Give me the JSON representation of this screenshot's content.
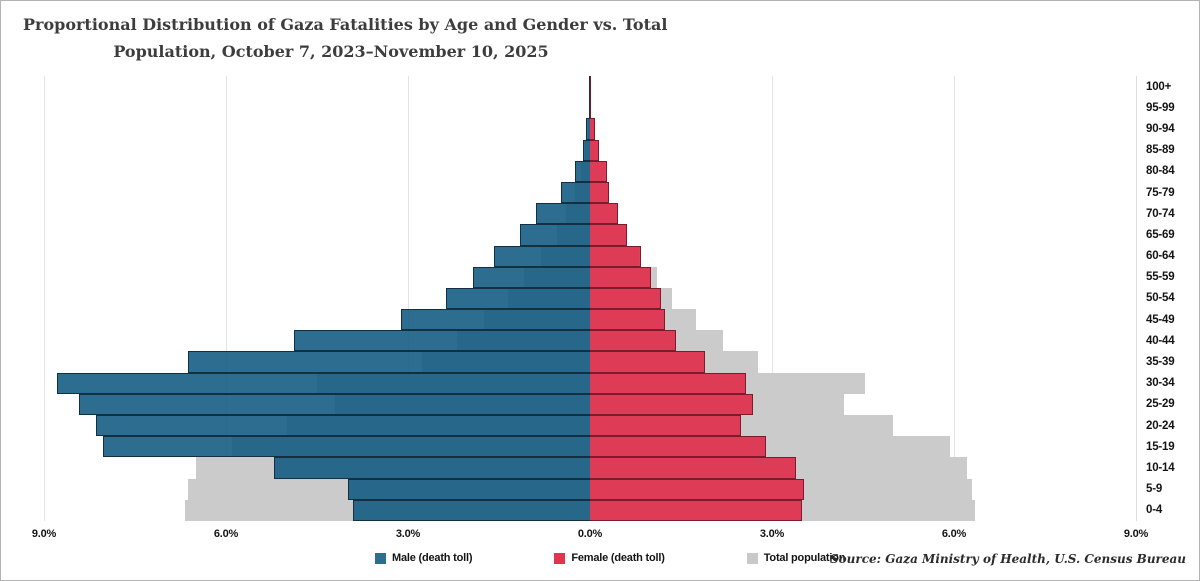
{
  "title": {
    "line1": "Proportional Distribution of Gaza Fatalities by Age and Gender vs. Total",
    "line2": "Population, October 7, 2023–November 10, 2025"
  },
  "source": "Source: Gaza Ministry of Health, U.S. Census Bureau",
  "colors": {
    "male": "#2d6d8e",
    "female": "#e02846",
    "population": "#cbcbcb",
    "male_border": "#123042",
    "female_border": "#7c1b2d",
    "gridline": "#e4e4e4",
    "center_line": "#909090"
  },
  "legend": {
    "items": [
      {
        "label": "Male (death toll)",
        "color": "#2d6d8e"
      },
      {
        "label": "Female (death toll)",
        "color": "#e0344f"
      },
      {
        "label": "Total population",
        "color": "#c9c9c9"
      }
    ]
  },
  "chart_data": {
    "type": "bar",
    "subtype": "population-pyramid",
    "title": "Proportional Distribution of Gaza Fatalities by Age and Gender vs. Total Population, October 7, 2023–November 10, 2025",
    "categories": [
      "100+",
      "95-99",
      "90-94",
      "85-89",
      "80-84",
      "75-79",
      "70-74",
      "65-69",
      "60-64",
      "55-59",
      "50-54",
      "45-49",
      "40-44",
      "35-39",
      "30-34",
      "25-29",
      "20-24",
      "15-19",
      "10-14",
      "5-9",
      "0-4"
    ],
    "units": "percent of group total, per side",
    "series": [
      {
        "name": "Male (death toll)",
        "side": "left",
        "color": "#2d6d8e",
        "values": [
          0.01,
          0.02,
          0.06,
          0.12,
          0.24,
          0.48,
          0.89,
          1.15,
          1.58,
          1.93,
          2.38,
          3.12,
          4.88,
          6.63,
          8.79,
          8.42,
          8.14,
          8.03,
          5.21,
          3.99,
          3.91
        ]
      },
      {
        "name": "Female (death toll)",
        "side": "right",
        "color": "#e02846",
        "values": [
          0.01,
          0.02,
          0.08,
          0.15,
          0.28,
          0.32,
          0.46,
          0.61,
          0.84,
          1.0,
          1.17,
          1.23,
          1.41,
          1.89,
          2.57,
          2.68,
          2.49,
          2.9,
          3.4,
          3.53,
          3.5
        ]
      },
      {
        "name": "Total population (male)",
        "side": "left",
        "color": "#cbcbcb",
        "values": [
          0.005,
          0.01,
          0.04,
          0.08,
          0.15,
          0.25,
          0.4,
          0.55,
          0.8,
          1.09,
          1.36,
          1.75,
          2.19,
          2.77,
          4.5,
          4.2,
          5.0,
          5.9,
          6.5,
          6.63,
          6.67
        ]
      },
      {
        "name": "Total population (female)",
        "side": "right",
        "color": "#cbcbcb",
        "values": [
          0.005,
          0.02,
          0.07,
          0.14,
          0.25,
          0.3,
          0.45,
          0.6,
          0.8,
          1.1,
          1.35,
          1.75,
          2.19,
          2.77,
          4.53,
          4.19,
          5.0,
          5.93,
          6.21,
          6.29,
          6.34
        ]
      }
    ],
    "x_tick_labels": [
      "9.0%",
      "6.0%",
      "3.0%",
      "0.0%",
      "3.0%",
      "6.0%",
      "9.0%"
    ],
    "xlim": [
      -9,
      9
    ],
    "axis_max_per_side": 9.0,
    "grid": true,
    "legend_position": "bottom"
  }
}
